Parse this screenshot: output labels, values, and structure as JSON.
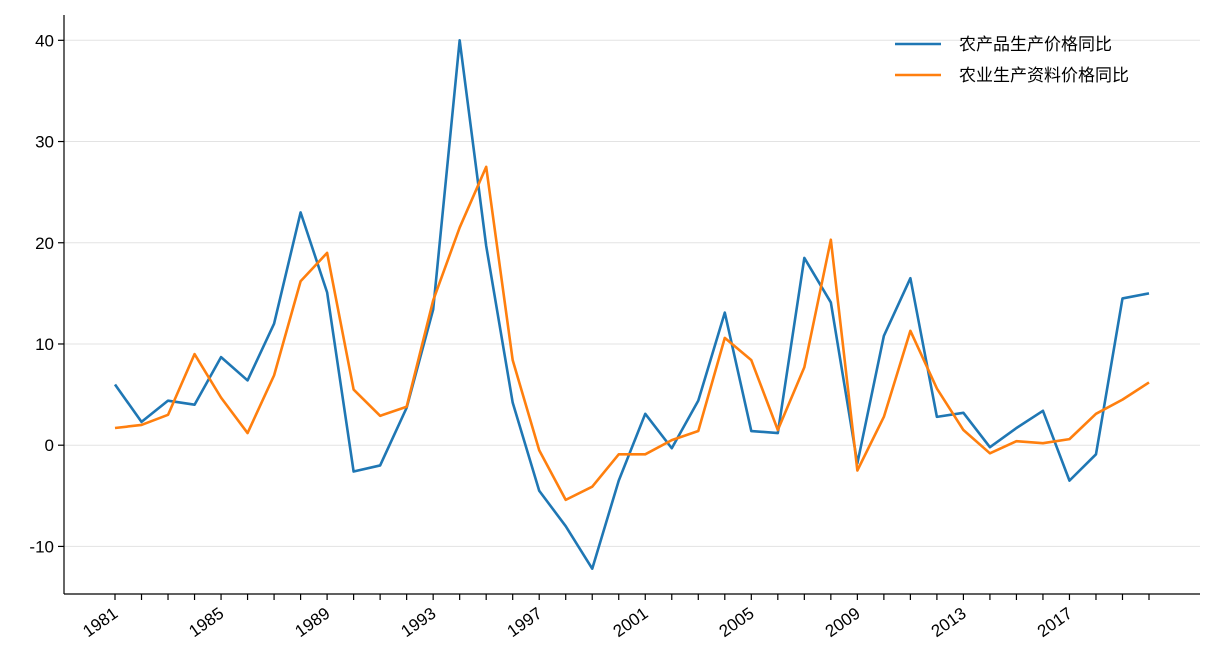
{
  "chart_data": {
    "type": "line",
    "categories": [
      "1981",
      null,
      null,
      null,
      "1985",
      null,
      null,
      null,
      "1989",
      null,
      null,
      null,
      "1993",
      null,
      null,
      null,
      "1997",
      null,
      null,
      null,
      "2001",
      null,
      null,
      null,
      "2005",
      null,
      null,
      null,
      "2009",
      null,
      null,
      null,
      "2013",
      null,
      null,
      null,
      "2017",
      null,
      null,
      null
    ],
    "series": [
      {
        "name": "农产品生产价格同比",
        "color": "#1f77b4",
        "values": [
          6.0,
          2.3,
          4.4,
          4.0,
          8.7,
          6.4,
          12.0,
          23.0,
          15.1,
          -2.6,
          -2.0,
          3.7,
          13.4,
          40.0,
          19.7,
          4.2,
          -4.5,
          -8.0,
          -12.2,
          -3.5,
          3.1,
          -0.3,
          4.4,
          13.1,
          1.4,
          1.2,
          18.5,
          14.1,
          -1.8,
          10.8,
          16.5,
          2.8,
          3.2,
          -0.2,
          1.7,
          3.4,
          -3.5,
          -0.9,
          14.5,
          15.0
        ]
      },
      {
        "name": "农业生产资料价格同比",
        "color": "#ff7f0e",
        "values": [
          1.7,
          2.0,
          3.0,
          9.0,
          4.7,
          1.2,
          6.9,
          16.2,
          19.0,
          5.5,
          2.9,
          3.8,
          14.3,
          21.5,
          27.5,
          8.4,
          -0.5,
          -5.4,
          -4.1,
          -0.9,
          -0.9,
          0.5,
          1.4,
          10.6,
          8.4,
          1.5,
          7.7,
          20.3,
          -2.5,
          2.8,
          11.3,
          5.6,
          1.5,
          -0.8,
          0.4,
          0.2,
          0.6,
          3.1,
          4.5,
          6.2
        ]
      }
    ],
    "ylim": [
      -14.7,
      42.5
    ],
    "yticks": [
      -10,
      0,
      10,
      20,
      30,
      40
    ],
    "grid": true,
    "legend": "upper right"
  }
}
